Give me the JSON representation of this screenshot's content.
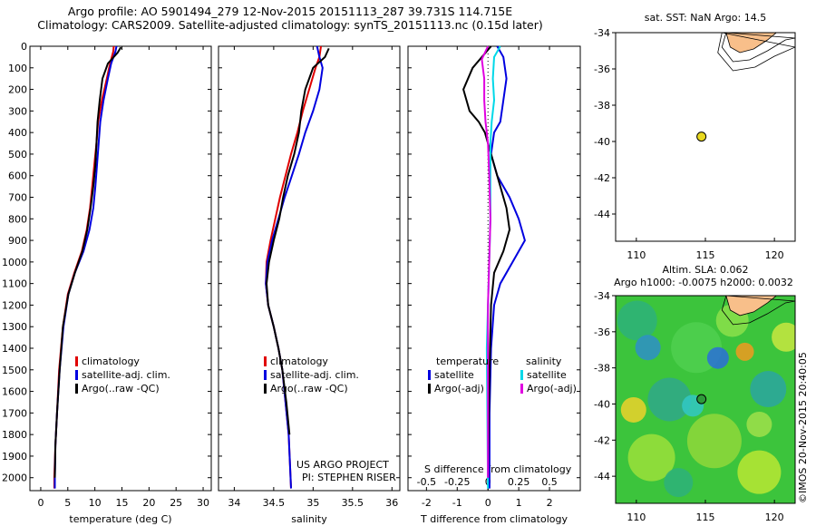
{
  "header": {
    "line1": "Argo profile: AO 5901494_279 12-Nov-2015 20151113_287 39.731S 114.715E",
    "line2": "Climatology: CARS2009. Satellite-adjusted climatology: synTS_20151113.nc (0.15d later)"
  },
  "credit": "©IMOS 20-Nov-2015 20:40:05",
  "project": {
    "line1": "US ARGO PROJECT",
    "line2": "PI: STEPHEN RISER"
  },
  "colors": {
    "climatology": "#e00000",
    "satellite": "#0000e0",
    "argo": "#000000",
    "sat_diff_s": "#00d8e8",
    "argo_diff_s": "#e000e0",
    "land": "#f8bf8a"
  },
  "chart_data": [
    {
      "type": "line",
      "xlabel": "temperature (deg C)",
      "ylabel": "",
      "xlim": [
        -2,
        31.5
      ],
      "ylim": [
        2060,
        0
      ],
      "xticks": [
        0,
        5,
        10,
        15,
        20,
        25,
        30
      ],
      "yticks": [
        0,
        100,
        200,
        300,
        400,
        500,
        600,
        700,
        800,
        900,
        1000,
        1100,
        1200,
        1300,
        1400,
        1500,
        1600,
        1700,
        1800,
        1900,
        2000
      ],
      "legend": [
        "climatology",
        "satellite-adj. clim.",
        "Argo(..raw -QC)"
      ],
      "series": [
        {
          "name": "climatology",
          "x": [
            13.5,
            13.4,
            12.8,
            12.2,
            11.3,
            10.6,
            10.3,
            9.9,
            9.5,
            9.1,
            8.5,
            7.6,
            6.2,
            5.0,
            4.1,
            3.4,
            3.0,
            2.7,
            2.5,
            2.5
          ],
          "y": [
            0,
            25,
            80,
            150,
            250,
            350,
            450,
            550,
            650,
            750,
            850,
            950,
            1050,
            1150,
            1300,
            1500,
            1700,
            1850,
            2000,
            2050
          ]
        },
        {
          "name": "satellite-adj. clim.",
          "x": [
            14.0,
            13.8,
            13.0,
            12.4,
            11.6,
            11.0,
            10.7,
            10.4,
            10.1,
            9.7,
            9.0,
            7.9,
            6.3,
            5.1,
            4.2,
            3.5,
            3.0,
            2.7,
            2.6,
            2.6
          ],
          "y": [
            0,
            25,
            80,
            150,
            250,
            350,
            450,
            550,
            650,
            750,
            850,
            950,
            1050,
            1150,
            1300,
            1500,
            1700,
            1850,
            2000,
            2050
          ]
        },
        {
          "name": "Argo(..raw -QC)",
          "x": [
            14.8,
            14.2,
            12.4,
            11.4,
            10.9,
            10.5,
            10.3,
            10.1,
            9.7,
            9.2,
            8.6,
            7.7,
            6.3,
            5.1,
            4.1,
            3.5,
            3.0,
            2.7,
            2.6
          ],
          "y": [
            5,
            30,
            80,
            150,
            250,
            350,
            450,
            550,
            650,
            750,
            850,
            950,
            1050,
            1150,
            1300,
            1500,
            1700,
            1850,
            2000
          ]
        }
      ]
    },
    {
      "type": "line",
      "xlabel": "salinity",
      "ylabel": "",
      "xlim": [
        33.8,
        36.1
      ],
      "ylim": [
        2060,
        0
      ],
      "xticks": [
        34,
        34.5,
        35,
        35.5,
        36
      ],
      "yticks": [],
      "legend": [
        "climatology",
        "satellite-adj. clim.",
        "Argo(..raw -QC)"
      ],
      "series": [
        {
          "name": "climatology",
          "x": [
            35.1,
            35.08,
            35.03,
            34.95,
            34.87,
            34.8,
            34.72,
            34.65,
            34.58,
            34.52,
            34.46,
            34.41,
            34.4,
            34.43,
            34.5,
            34.56,
            34.61,
            34.65,
            34.69,
            34.72
          ],
          "y": [
            0,
            50,
            100,
            200,
            300,
            400,
            500,
            600,
            700,
            800,
            900,
            1000,
            1100,
            1200,
            1300,
            1400,
            1500,
            1650,
            1800,
            2050
          ]
        },
        {
          "name": "satellite-adj. clim.",
          "x": [
            35.05,
            35.08,
            35.12,
            35.08,
            35.0,
            34.9,
            34.82,
            34.73,
            34.64,
            34.56,
            34.48,
            34.42,
            34.4,
            34.43,
            34.5,
            34.56,
            34.61,
            34.65,
            34.69,
            34.72
          ],
          "y": [
            0,
            50,
            100,
            200,
            300,
            400,
            500,
            600,
            700,
            800,
            900,
            1000,
            1100,
            1200,
            1300,
            1400,
            1500,
            1650,
            1800,
            2050
          ]
        },
        {
          "name": "Argo(..raw -QC)",
          "x": [
            35.2,
            35.15,
            35.0,
            34.9,
            34.85,
            34.82,
            34.76,
            34.68,
            34.62,
            34.57,
            34.5,
            34.44,
            34.41,
            34.43,
            34.5,
            34.56,
            34.61,
            34.66,
            34.7
          ],
          "y": [
            10,
            50,
            100,
            200,
            300,
            400,
            500,
            600,
            700,
            800,
            900,
            1000,
            1100,
            1200,
            1300,
            1400,
            1500,
            1650,
            1800
          ]
        }
      ]
    },
    {
      "type": "line",
      "xlabel": "T difference from climatology",
      "xlabel2": "S difference from climatology",
      "ylabel": "",
      "xlim": [
        -2.6,
        3.0
      ],
      "xlim_top": [
        -0.65,
        0.75
      ],
      "ylim": [
        2060,
        0
      ],
      "xticks": [
        -2,
        -1,
        0,
        1,
        2
      ],
      "xticks_top": [
        -0.5,
        -0.25,
        0,
        0.25,
        0.5
      ],
      "legend_left": {
        "header": "temperature",
        "items": [
          "satellite",
          "Argo(-adj)"
        ]
      },
      "legend_right": {
        "header": "salinity",
        "items": [
          "satellite",
          "Argo(-adj)"
        ]
      },
      "series": [
        {
          "name": "satellite",
          "x": [
            0.3,
            0.5,
            0.6,
            0.5,
            0.4,
            0.2,
            0.1,
            0.3,
            0.7,
            1.0,
            1.2,
            0.8,
            0.4,
            0.2,
            0.1,
            0.05,
            0.05
          ],
          "y": [
            0,
            50,
            150,
            250,
            350,
            400,
            500,
            600,
            700,
            800,
            900,
            1000,
            1100,
            1200,
            1400,
            1700,
            2050
          ]
        },
        {
          "name": "Argo(-adj)",
          "x": [
            0.1,
            -0.5,
            -0.8,
            -0.6,
            -0.3,
            -0.1,
            0.1,
            0.3,
            0.6,
            0.7,
            0.5,
            0.2,
            0.1,
            0.05,
            0.0
          ],
          "y": [
            0,
            100,
            200,
            300,
            350,
            400,
            500,
            600,
            750,
            850,
            950,
            1050,
            1200,
            1500,
            2000
          ]
        },
        {
          "name": "satellite",
          "x": [
            0.1,
            0.05,
            0.04,
            0.05,
            0.03,
            0.02,
            0.02,
            0.02,
            0.01,
            0.0,
            -0.01,
            -0.005,
            0.0
          ],
          "y": [
            0,
            50,
            150,
            250,
            350,
            450,
            600,
            800,
            1000,
            1200,
            1400,
            1700,
            2050
          ]
        },
        {
          "name": "Argo(-adj)",
          "x": [
            0.0,
            -0.05,
            -0.03,
            -0.03,
            -0.02,
            0.0,
            0.01,
            0.02,
            0.0,
            0.0
          ],
          "y": [
            0,
            60,
            150,
            250,
            350,
            450,
            600,
            800,
            1200,
            2000
          ]
        }
      ]
    },
    {
      "type": "scatter",
      "title": "sat. SST: NaN Argo: 14.5",
      "xlim": [
        108.5,
        121.5
      ],
      "ylim": [
        -45.5,
        -34
      ],
      "xticks": [
        110,
        115,
        120
      ],
      "yticks": [
        -34,
        -36,
        -38,
        -40,
        -42,
        -44
      ],
      "points": [
        {
          "x": 114.715,
          "y": -39.731
        }
      ]
    },
    {
      "type": "heatmap",
      "title": "Altim. SLA: 0.062",
      "subtitle": "Argo h1000: -0.0075 h2000: 0.0032",
      "xlim": [
        108.5,
        121.5
      ],
      "ylim": [
        -45.5,
        -34
      ],
      "xticks": [
        110,
        115,
        120
      ],
      "yticks": [
        -34,
        -36,
        -38,
        -40,
        -42,
        -44
      ],
      "points": [
        {
          "x": 114.715,
          "y": -39.731
        }
      ]
    }
  ]
}
